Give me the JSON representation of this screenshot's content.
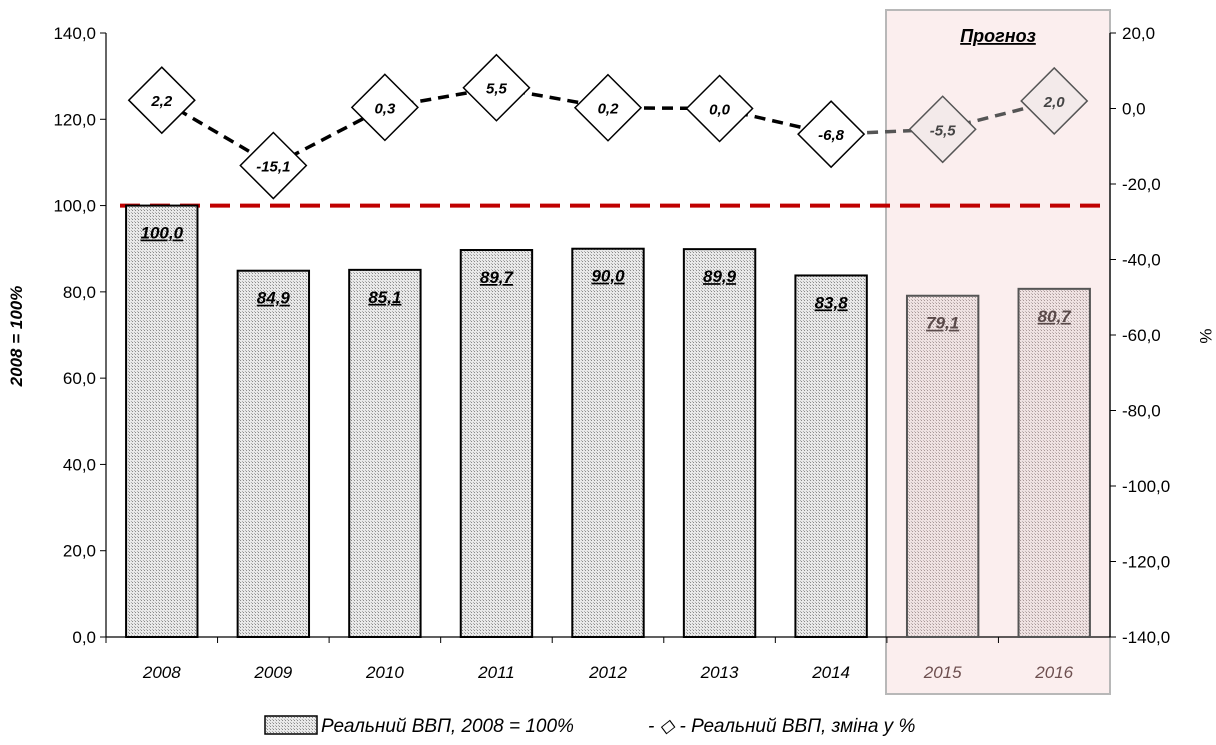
{
  "chart_data": {
    "type": "bar",
    "categories": [
      "2008",
      "2009",
      "2010",
      "2011",
      "2012",
      "2013",
      "2014",
      "2015",
      "2016"
    ],
    "forecast_categories": [
      "2015",
      "2016"
    ],
    "forecast_label": "Прогноз",
    "ylabel": "2008 = 100%",
    "y2label": "%",
    "ylim": [
      0,
      140
    ],
    "y2lim": [
      -140,
      20
    ],
    "yticks": [
      "0,0",
      "20,0",
      "40,0",
      "60,0",
      "80,0",
      "100,0",
      "120,0",
      "140,0"
    ],
    "y2ticks": [
      "-140,0",
      "-120,0",
      "-100,0",
      "-80,0",
      "-60,0",
      "-40,0",
      "-20,0",
      "0,0",
      "20,0"
    ],
    "reference_line": 100,
    "legend_position": "bottom",
    "grid": false,
    "series": [
      {
        "name": "Реальний ВВП, 2008 = 100%",
        "type": "bar",
        "axis": "left",
        "values": [
          100.0,
          84.9,
          85.1,
          89.7,
          90.0,
          89.9,
          83.8,
          79.1,
          80.7
        ],
        "labels": [
          "100,0",
          "84,9",
          "85,1",
          "89,7",
          "90,0",
          "89,9",
          "83,8",
          "79,1",
          "80,7"
        ]
      },
      {
        "name": "Реальний ВВП, зміна у %",
        "type": "line",
        "axis": "right",
        "values": [
          2.2,
          -15.1,
          0.3,
          5.5,
          0.2,
          0.0,
          -6.8,
          -5.5,
          2.0
        ],
        "labels": [
          "2,2",
          "-15,1",
          "0,3",
          "5,5",
          "0,2",
          "0,0",
          "-6,8",
          "-5,5",
          "2,0"
        ]
      }
    ],
    "colors": {
      "bar_fill": "#e6e6e6",
      "bar_border": "#000000",
      "forecast_bar_fill": "#ecdcdc",
      "forecast_bar_border": "#555555",
      "forecast_bg": "#fbeeee",
      "forecast_border": "#b8b8b8",
      "reference_line": "#c00000",
      "line": "#000000"
    },
    "legend": [
      "Реальний ВВП, 2008 = 100%",
      "- ◇ - Реальний ВВП, зміна у %"
    ]
  }
}
